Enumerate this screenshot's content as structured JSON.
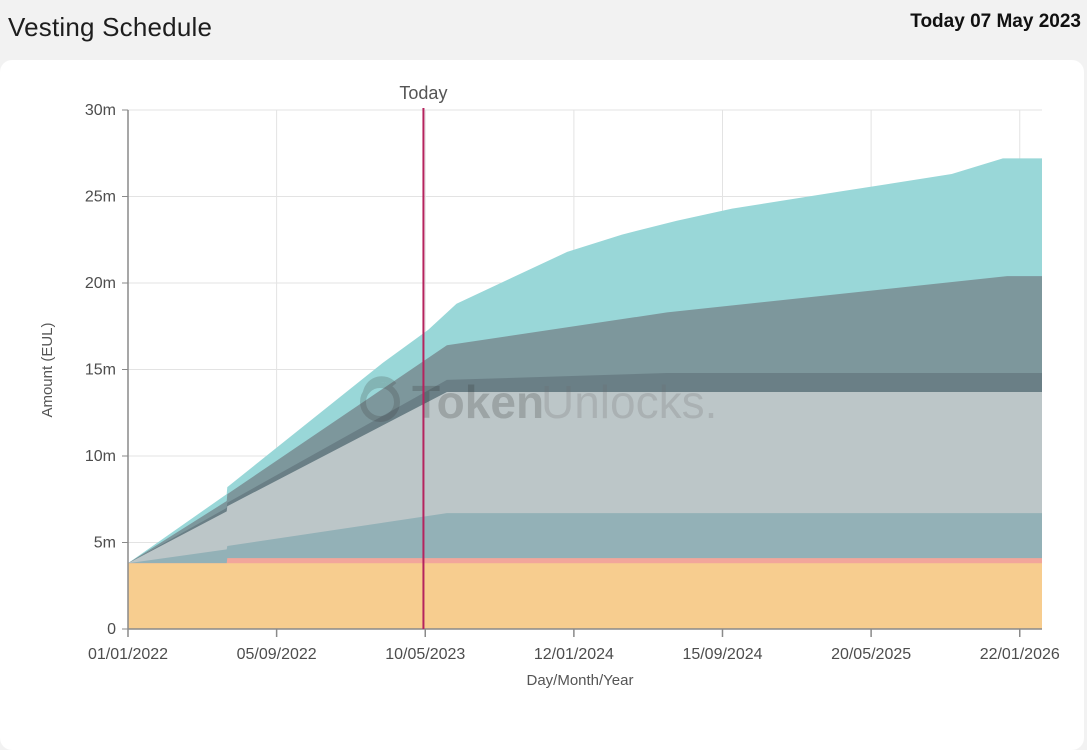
{
  "header": {
    "title": "Vesting Schedule",
    "today_label": "Today 07 May 2023"
  },
  "watermark": {
    "part1": "Token",
    "part2": "Unlocks."
  },
  "chart_data": {
    "type": "area",
    "stacked": true,
    "xlabel": "Day/Month/Year",
    "ylabel": "Amount (EUL)",
    "ylim": [
      0,
      30000000
    ],
    "yticks": [
      0,
      5000000,
      10000000,
      15000000,
      20000000,
      25000000,
      30000000
    ],
    "ytick_labels": [
      "0",
      "5m",
      "10m",
      "15m",
      "20m",
      "25m",
      "30m"
    ],
    "xlim": [
      "2022-01-01",
      "2026-02-28"
    ],
    "xticks": [
      "2022-01-01",
      "2022-09-05",
      "2023-05-10",
      "2024-01-12",
      "2024-09-15",
      "2025-05-20",
      "2026-01-22"
    ],
    "xtick_labels": [
      "01/01/2022",
      "05/09/2022",
      "10/05/2023",
      "12/01/2024",
      "15/09/2024",
      "20/05/2025",
      "22/01/2026"
    ],
    "today_marker": {
      "date": "2023-05-07",
      "label": "Today"
    },
    "grid": true,
    "legend": "none",
    "series": [
      {
        "color": "#f7cd8f",
        "points": [
          [
            "2022-01-01",
            3.8
          ],
          [
            "2026-02-28",
            3.8
          ]
        ]
      },
      {
        "color": "#f2a69b",
        "points": [
          [
            "2022-01-01",
            3.8
          ],
          [
            "2022-06-14",
            3.8
          ],
          [
            "2022-06-15",
            4.1
          ],
          [
            "2026-02-28",
            4.1
          ]
        ]
      },
      {
        "color": "#93b1b7",
        "points": [
          [
            "2022-01-01",
            3.8
          ],
          [
            "2022-06-14",
            4.6
          ],
          [
            "2022-06-15",
            4.8
          ],
          [
            "2023-06-15",
            6.7
          ],
          [
            "2026-02-28",
            6.7
          ]
        ]
      },
      {
        "color": "#bcc6c8",
        "points": [
          [
            "2022-01-01",
            3.8
          ],
          [
            "2022-06-14",
            6.8
          ],
          [
            "2022-06-15",
            7.1
          ],
          [
            "2023-06-15",
            13.7
          ],
          [
            "2026-02-28",
            13.7
          ]
        ]
      },
      {
        "color": "#6a7f86",
        "points": [
          [
            "2022-01-01",
            3.8
          ],
          [
            "2022-06-14",
            7.0
          ],
          [
            "2022-06-15",
            7.3
          ],
          [
            "2023-06-15",
            14.4
          ],
          [
            "2024-06-15",
            14.8
          ],
          [
            "2026-02-28",
            14.8
          ]
        ]
      },
      {
        "color": "#7d979c",
        "points": [
          [
            "2022-01-01",
            3.8
          ],
          [
            "2022-06-14",
            7.4
          ],
          [
            "2022-06-15",
            7.8
          ],
          [
            "2023-06-15",
            16.4
          ],
          [
            "2024-06-15",
            18.3
          ],
          [
            "2026-01-01",
            20.4
          ],
          [
            "2026-02-28",
            20.4
          ]
        ]
      },
      {
        "color": "#99d7d8",
        "points": [
          [
            "2022-01-01",
            3.8
          ],
          [
            "2022-06-14",
            7.8
          ],
          [
            "2022-06-15",
            8.2
          ],
          [
            "2023-03-01",
            15.4
          ],
          [
            "2023-05-15",
            17.3
          ],
          [
            "2023-07-01",
            18.8
          ],
          [
            "2023-10-01",
            20.3
          ],
          [
            "2024-01-01",
            21.8
          ],
          [
            "2024-04-01",
            22.8
          ],
          [
            "2024-07-01",
            23.6
          ],
          [
            "2024-10-01",
            24.3
          ],
          [
            "2025-04-01",
            25.3
          ],
          [
            "2025-10-01",
            26.3
          ],
          [
            "2025-12-25",
            27.2
          ],
          [
            "2026-02-28",
            27.2
          ]
        ]
      }
    ],
    "value_unit_multiplier": 1000000
  }
}
